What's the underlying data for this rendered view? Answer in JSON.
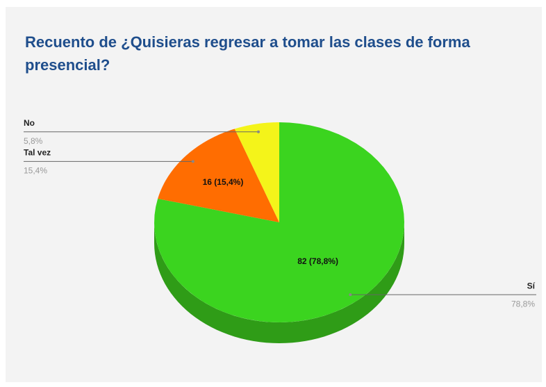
{
  "chart_data": {
    "type": "pie",
    "title": "Recuento de ¿Quisieras regresar a tomar las clases de forma presencial?",
    "categories": [
      "Sí",
      "Tal vez",
      "No"
    ],
    "values": [
      78.8,
      15.4,
      5.8
    ],
    "value_labels": [
      "78,8%",
      "15,4%",
      "5,8%"
    ],
    "inner_labels": [
      "82 (78,8%)",
      "16 (15,4%)"
    ],
    "colors": [
      "#3bd41f",
      "#ff6d01",
      "#f4f41a"
    ],
    "side_colors": [
      "#2f9c17",
      "#c85400",
      "#bcbc10"
    ]
  }
}
